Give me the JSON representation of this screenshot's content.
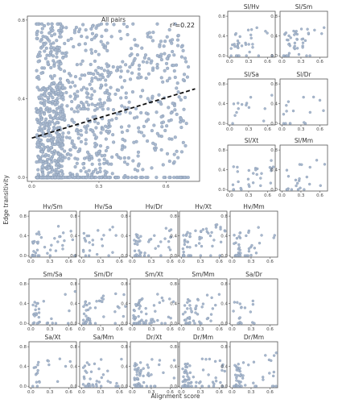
{
  "labels": {
    "xlabel": "Alignment score",
    "ylabel": "Edge transitivity",
    "r2": "r²=0.22"
  },
  "chart_data": [
    {
      "id": "all-pairs",
      "type": "scatter",
      "title": "All pairs",
      "xlim": [
        -0.02,
        0.75
      ],
      "ylim": [
        -0.02,
        0.82
      ],
      "xticks": [
        "0.0",
        "0.3",
        "0.6"
      ],
      "xtick_values": [
        0.0,
        0.3,
        0.6
      ],
      "yticks": [
        "0.0",
        "0.4",
        "0.8"
      ],
      "ytick_values": [
        0.0,
        0.4,
        0.8
      ],
      "trendline": {
        "x": [
          0.0,
          0.73
        ],
        "y": [
          0.2,
          0.45
        ],
        "style": "dashed"
      },
      "n_points": 1200
    },
    {
      "id": "sl-hv",
      "type": "scatter",
      "title": "Sl/Hv",
      "n_points": 35
    },
    {
      "id": "sl-sm",
      "type": "scatter",
      "title": "Sl/Sm",
      "n_points": 45
    },
    {
      "id": "sl-sa",
      "type": "scatter",
      "title": "Sl/Sa",
      "n_points": 14
    },
    {
      "id": "sl-dr",
      "type": "scatter",
      "title": "Sl/Dr",
      "n_points": 16
    },
    {
      "id": "sl-xt",
      "type": "scatter",
      "title": "Sl/Xt",
      "n_points": 28
    },
    {
      "id": "sl-mm",
      "type": "scatter",
      "title": "Sl/Mm",
      "n_points": 22
    },
    {
      "id": "hv-sm",
      "type": "scatter",
      "title": "Hv/Sm",
      "n_points": 40
    },
    {
      "id": "hv-sa",
      "type": "scatter",
      "title": "Hv/Sa",
      "n_points": 24
    },
    {
      "id": "hv-dr",
      "type": "scatter",
      "title": "Hv/Dr",
      "n_points": 45
    },
    {
      "id": "hv-xt",
      "type": "scatter",
      "title": "Hv/Xt",
      "n_points": 55
    },
    {
      "id": "hv-mm",
      "type": "scatter",
      "title": "Hv/Mm",
      "n_points": 40
    },
    {
      "id": "sm-sa",
      "type": "scatter",
      "title": "Sm/Sa",
      "n_points": 30
    },
    {
      "id": "sm-dr",
      "type": "scatter",
      "title": "Sm/Dr",
      "n_points": 45
    },
    {
      "id": "sm-xt",
      "type": "scatter",
      "title": "Sm/Xt",
      "n_points": 60
    },
    {
      "id": "sm-mm",
      "type": "scatter",
      "title": "Sm/Mm",
      "n_points": 45
    },
    {
      "id": "sa-dr",
      "type": "scatter",
      "title": "Sa/Dr",
      "n_points": 18
    },
    {
      "id": "sa-xt",
      "type": "scatter",
      "title": "Sa/Xt",
      "n_points": 20
    },
    {
      "id": "sa-mm",
      "type": "scatter",
      "title": "Sa/Mm",
      "n_points": 40
    },
    {
      "id": "dr-xt",
      "type": "scatter",
      "title": "Dr/Xt",
      "n_points": 60
    },
    {
      "id": "dr-mm",
      "type": "scatter",
      "title": "Dr/Mm",
      "n_points": 70
    },
    {
      "id": "dr-mm-2",
      "type": "scatter",
      "title": "Dr/Mm",
      "n_points": 55
    }
  ],
  "small_axes": {
    "xlim": [
      -0.03,
      0.72
    ],
    "ylim": [
      -0.03,
      0.9
    ],
    "xticks": [
      "0.0",
      "0.3",
      "0.6"
    ],
    "xtick_values": [
      0.0,
      0.3,
      0.6
    ],
    "yticks": [
      "0.0",
      "0.4",
      "0.8"
    ],
    "ytick_values": [
      0.0,
      0.4,
      0.8
    ]
  }
}
